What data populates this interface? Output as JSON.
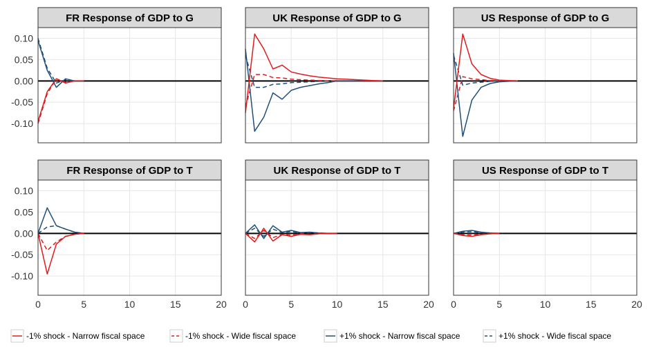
{
  "chart_data": {
    "type": "line",
    "legend_position": "bottom",
    "grid": true,
    "xlim": [
      0,
      20
    ],
    "ylim": [
      -0.145,
      0.125
    ],
    "x_ticks": [
      0,
      5,
      10,
      15,
      20
    ],
    "y_ticks": [
      -0.1,
      -0.05,
      0.0,
      0.05,
      0.1
    ],
    "y_tick_labels": [
      "-0.10",
      "-0.05",
      "0.00",
      "0.05",
      "0.10"
    ],
    "series_styles": [
      {
        "key": "neg_narrow",
        "label": "-1% shock - Narrow fiscal space",
        "color": "#e31a1c",
        "dash": "solid"
      },
      {
        "key": "neg_wide",
        "label": "-1% shock - Wide fiscal space",
        "color": "#e31a1c",
        "dash": "dashed"
      },
      {
        "key": "pos_narrow",
        "label": "+1% shock - Narrow fiscal space",
        "color": "#1f4e79",
        "dash": "solid"
      },
      {
        "key": "pos_wide",
        "label": "+1% shock - Wide fiscal space",
        "color": "#1f4e79",
        "dash": "dashed"
      }
    ],
    "panels": [
      {
        "id": "fr-g",
        "title": "FR Response of GDP to G",
        "row": 0,
        "col": 0,
        "series": {
          "neg_narrow": {
            "x": [
              0,
              1,
              2,
              3,
              4,
              5
            ],
            "y": [
              -0.095,
              -0.025,
              0.005,
              -0.005,
              0.0,
              0.0
            ]
          },
          "neg_wide": {
            "x": [
              0,
              1,
              2,
              3,
              4,
              5
            ],
            "y": [
              -0.1,
              -0.03,
              0.005,
              -0.003,
              0.0,
              0.0
            ]
          },
          "pos_narrow": {
            "x": [
              0,
              1,
              2,
              3,
              4,
              5
            ],
            "y": [
              0.095,
              0.025,
              -0.015,
              0.005,
              0.0,
              0.0
            ]
          },
          "pos_wide": {
            "x": [
              0,
              1,
              2,
              3,
              4,
              5
            ],
            "y": [
              0.1,
              0.03,
              -0.005,
              0.003,
              0.0,
              0.0
            ]
          }
        }
      },
      {
        "id": "uk-g",
        "title": "UK Response of GDP to G",
        "row": 0,
        "col": 1,
        "series": {
          "neg_narrow": {
            "x": [
              0,
              1,
              2,
              3,
              4,
              5,
              6,
              7,
              8,
              9,
              10,
              11,
              12,
              13,
              14,
              15
            ],
            "y": [
              -0.075,
              0.11,
              0.075,
              0.028,
              0.037,
              0.021,
              0.016,
              0.012,
              0.009,
              0.007,
              0.005,
              0.004,
              0.003,
              0.002,
              0.001,
              0.0
            ]
          },
          "neg_wide": {
            "x": [
              0,
              1,
              2,
              3,
              4,
              5,
              6,
              7,
              8,
              9,
              10
            ],
            "y": [
              -0.06,
              0.015,
              0.015,
              0.008,
              0.007,
              0.004,
              0.003,
              0.002,
              0.001,
              0.0,
              0.0
            ]
          },
          "pos_narrow": {
            "x": [
              0,
              1,
              2,
              3,
              4,
              5,
              6,
              7,
              8,
              9,
              10,
              11,
              12,
              13,
              14,
              15
            ],
            "y": [
              0.075,
              -0.118,
              -0.085,
              -0.028,
              -0.043,
              -0.022,
              -0.015,
              -0.011,
              -0.007,
              -0.004,
              0.0,
              0.0,
              0.0,
              0.0,
              0.0,
              0.0
            ]
          },
          "pos_wide": {
            "x": [
              0,
              1,
              2,
              3,
              4,
              5,
              6,
              7,
              8,
              9,
              10
            ],
            "y": [
              0.06,
              -0.015,
              -0.015,
              -0.008,
              -0.007,
              -0.004,
              -0.003,
              -0.002,
              -0.001,
              0.0,
              0.0
            ]
          }
        }
      },
      {
        "id": "us-g",
        "title": "US Response of GDP to G",
        "row": 0,
        "col": 2,
        "series": {
          "neg_narrow": {
            "x": [
              0,
              1,
              2,
              3,
              4,
              5,
              6,
              7
            ],
            "y": [
              -0.065,
              0.11,
              0.04,
              0.015,
              0.006,
              0.002,
              0.001,
              0.0
            ]
          },
          "neg_wide": {
            "x": [
              0,
              1,
              2,
              3,
              4,
              5,
              6,
              7
            ],
            "y": [
              -0.07,
              0.01,
              0.005,
              0.003,
              0.001,
              0.0,
              0.0,
              0.0
            ]
          },
          "pos_narrow": {
            "x": [
              0,
              1,
              2,
              3,
              4,
              5,
              6,
              7
            ],
            "y": [
              0.065,
              -0.13,
              -0.045,
              -0.015,
              -0.006,
              -0.002,
              -0.001,
              0.0
            ]
          },
          "pos_wide": {
            "x": [
              0,
              1,
              2,
              3,
              4,
              5,
              6,
              7
            ],
            "y": [
              0.06,
              -0.01,
              -0.005,
              -0.003,
              -0.001,
              0.0,
              0.0,
              0.0
            ]
          }
        }
      },
      {
        "id": "fr-t",
        "title": "FR Response of GDP to T",
        "row": 1,
        "col": 0,
        "series": {
          "neg_narrow": {
            "x": [
              0,
              1,
              2,
              3,
              4,
              5
            ],
            "y": [
              0.0,
              -0.095,
              -0.025,
              -0.007,
              -0.002,
              0.0
            ]
          },
          "neg_wide": {
            "x": [
              0,
              1,
              2,
              3,
              4,
              5
            ],
            "y": [
              0.0,
              -0.04,
              -0.02,
              -0.007,
              -0.002,
              0.0
            ]
          },
          "pos_narrow": {
            "x": [
              0,
              1,
              2,
              3,
              4,
              5
            ],
            "y": [
              0.0,
              0.06,
              0.018,
              0.01,
              0.003,
              0.0
            ]
          },
          "pos_wide": {
            "x": [
              0,
              1,
              2,
              3,
              4,
              5
            ],
            "y": [
              0.0,
              0.015,
              0.018,
              0.01,
              0.003,
              0.0
            ]
          }
        }
      },
      {
        "id": "uk-t",
        "title": "UK Response of GDP to T",
        "row": 1,
        "col": 1,
        "series": {
          "neg_narrow": {
            "x": [
              0,
              1,
              2,
              3,
              4,
              5,
              6,
              7,
              8,
              9,
              10
            ],
            "y": [
              0.0,
              -0.02,
              0.012,
              -0.018,
              -0.003,
              -0.007,
              -0.002,
              -0.003,
              -0.001,
              0.0,
              0.0
            ]
          },
          "neg_wide": {
            "x": [
              0,
              1,
              2,
              3,
              4,
              5,
              6,
              7,
              8,
              9,
              10
            ],
            "y": [
              0.0,
              -0.012,
              0.007,
              -0.01,
              -0.002,
              -0.004,
              -0.001,
              -0.002,
              -0.001,
              0.0,
              0.0
            ]
          },
          "pos_narrow": {
            "x": [
              0,
              1,
              2,
              3,
              4,
              5,
              6,
              7,
              8,
              9,
              10
            ],
            "y": [
              0.0,
              0.02,
              -0.012,
              0.018,
              0.003,
              0.007,
              0.002,
              0.003,
              0.001,
              0.0,
              0.0
            ]
          },
          "pos_wide": {
            "x": [
              0,
              1,
              2,
              3,
              4,
              5,
              6,
              7,
              8,
              9,
              10
            ],
            "y": [
              0.0,
              0.012,
              -0.007,
              0.01,
              0.002,
              0.004,
              0.001,
              0.002,
              0.001,
              0.0,
              0.0
            ]
          }
        }
      },
      {
        "id": "us-t",
        "title": "US Response of GDP to T",
        "row": 1,
        "col": 2,
        "series": {
          "neg_narrow": {
            "x": [
              0,
              1,
              2,
              3,
              4,
              5
            ],
            "y": [
              0.0,
              -0.005,
              -0.007,
              -0.003,
              -0.001,
              0.0
            ]
          },
          "neg_wide": {
            "x": [
              0,
              1,
              2,
              3,
              4,
              5
            ],
            "y": [
              0.0,
              -0.003,
              -0.004,
              -0.002,
              -0.001,
              0.0
            ]
          },
          "pos_narrow": {
            "x": [
              0,
              1,
              2,
              3,
              4,
              5
            ],
            "y": [
              0.0,
              0.005,
              0.007,
              0.003,
              0.001,
              0.0
            ]
          },
          "pos_wide": {
            "x": [
              0,
              1,
              2,
              3,
              4,
              5
            ],
            "y": [
              0.0,
              0.003,
              0.004,
              0.002,
              0.001,
              0.0
            ]
          }
        }
      }
    ]
  }
}
